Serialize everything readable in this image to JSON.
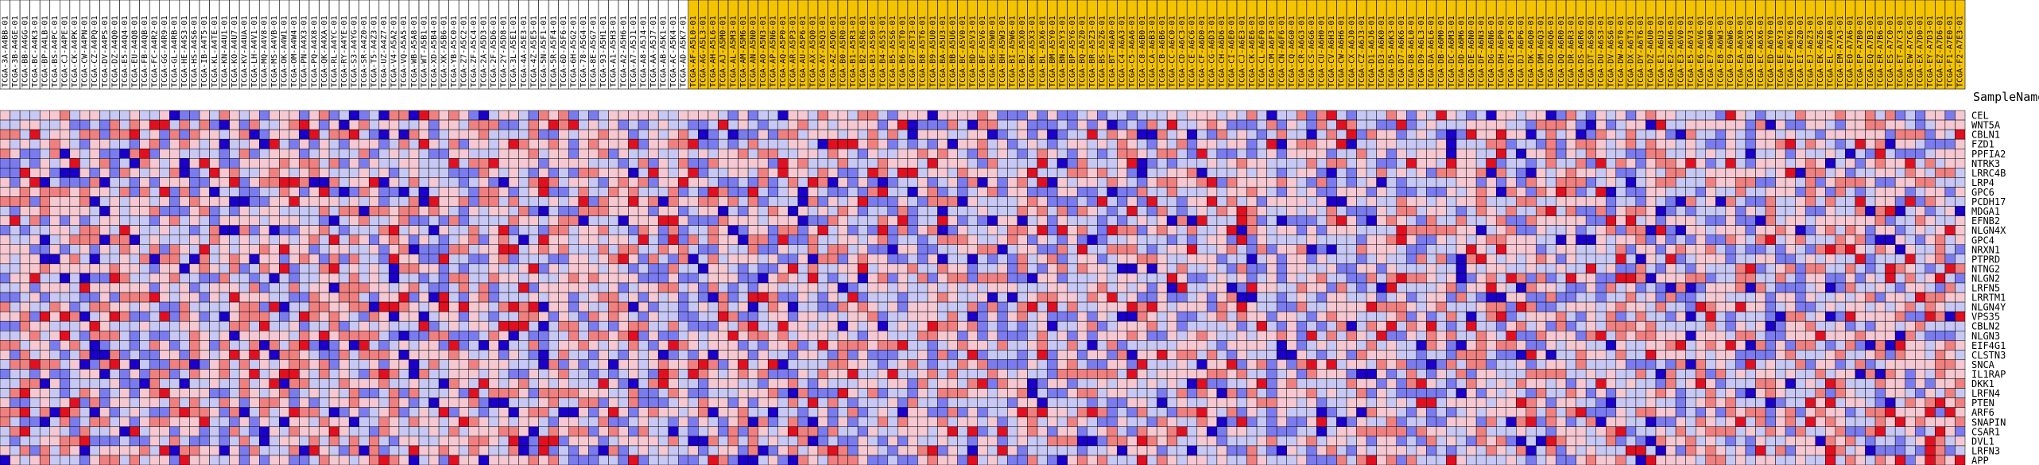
{
  "chart_data": {
    "type": "heatmap",
    "title": "",
    "row_header": "SampleName",
    "group_colors": [
      "#ffffff",
      "#f5c400"
    ],
    "group_split_index": 69,
    "color_scale": [
      "#1a00c8",
      "#7b7bf0",
      "#c8c8f5",
      "#f5c8d2",
      "#f08080",
      "#e01020"
    ],
    "genes": [
      "CEL",
      "WNT5A",
      "CBLN1",
      "FZD1",
      "PPFIA2",
      "NTRK3",
      "LRRC4B",
      "LRP4",
      "GPC6",
      "PCDH17",
      "MDGA1",
      "EFNB2",
      "NLGN4X",
      "GPC4",
      "NRXN1",
      "PTPRD",
      "NTNG2",
      "NLGN2",
      "LRFN5",
      "LRRTM1",
      "NLGN4Y",
      "VPS35",
      "CBLN2",
      "NLGN3",
      "EIF4G1",
      "CLSTN3",
      "SNCA",
      "IL1RAP",
      "DKK1",
      "LRFN4",
      "PTEN",
      "ARF6",
      "SNAPIN",
      "CSAR1",
      "DVL1",
      "LRFN3",
      "APP"
    ],
    "samples": [
      "TCGA-3A-A4BB-01",
      "TCGA-3B-A4GE-01",
      "TCGA-BB-A4GG-01",
      "TCGA-BC-A4K3-01",
      "TCGA-BP-A4LB-01",
      "TCGA-BS-A4PC-01",
      "TCGA-CJ-A4PE-01",
      "TCGA-CK-A4PK-01",
      "TCGA-CW-A4PN-01",
      "TCGA-CZ-A4PQ-01",
      "TCGA-DV-A4PS-01",
      "TCGA-DZ-A4Q0-01",
      "TCGA-E5-A4Q4-01",
      "TCGA-EU-A4Q8-01",
      "TCGA-FB-A4QB-01",
      "TCGA-FC-A4R2-01",
      "TCGA-GG-A4R9-01",
      "TCGA-GL-A4RB-01",
      "TCGA-HE-A4S3-01",
      "TCGA-HS-A4S6-01",
      "TCGA-IB-A4T5-01",
      "TCGA-KL-A4TE-01",
      "TCGA-KN-A4U1-01",
      "TCGA-KO-A4U7-01",
      "TCGA-KV-A4UA-01",
      "TCGA-LH-A4V1-01",
      "TCGA-MQ-A4V8-01",
      "TCGA-MS-A4VB-01",
      "TCGA-OK-A4W1-01",
      "TCGA-OM-A4W4-01",
      "TCGA-PN-A4X3-01",
      "TCGA-PQ-A4X8-01",
      "TCGA-QK-A4XA-01",
      "TCGA-RL-A4YC-01",
      "TCGA-RY-A4YE-01",
      "TCGA-S3-A4YG-01",
      "TCGA-SR-A4Z0-01",
      "TCGA-T5-A4Z3-01",
      "TCGA-UZ-A4Z7-01",
      "TCGA-V4-A5A2-01",
      "TCGA-VQ-A5A5-01",
      "TCGA-WB-A5A8-01",
      "TCGA-WT-A5B1-01",
      "TCGA-XD-A5B4-01",
      "TCGA-XK-A5B6-01",
      "TCGA-YB-A5C0-01",
      "TCGA-Z7-A5C2-01",
      "TCGA-ZF-A5C4-01",
      "TCGA-2A-A5D3-01",
      "TCGA-2F-A5D6-01",
      "TCGA-2Y-A5D8-01",
      "TCGA-3L-A5E1-01",
      "TCGA-4A-A5E3-01",
      "TCGA-4Z-A5E5-01",
      "TCGA-5N-A5F1-01",
      "TCGA-5R-A5F4-01",
      "TCGA-6D-A5F6-01",
      "TCGA-6H-A5G2-01",
      "TCGA-78-A5G4-01",
      "TCGA-8E-A5G7-01",
      "TCGA-93-A5H1-01",
      "TCGA-A1-A5H3-01",
      "TCGA-A2-A5H6-01",
      "TCGA-A7-A5J1-01",
      "TCGA-A8-A5J4-01",
      "TCGA-AA-A5J7-01",
      "TCGA-AB-A5K1-01",
      "TCGA-AC-A5K4-01",
      "TCGA-AD-A5K7-01",
      "TCGA-AF-A5L0-01",
      "TCGA-AG-A5L3-01",
      "TCGA-AH-A5L6-01",
      "TCGA-AJ-A5M0-01",
      "TCGA-AL-A5M3-01",
      "TCGA-AM-A5M6-01",
      "TCGA-AN-A5N0-01",
      "TCGA-AO-A5N3-01",
      "TCGA-AP-A5N6-01",
      "TCGA-AQ-A5P0-01",
      "TCGA-AR-A5P3-01",
      "TCGA-AU-A5P6-01",
      "TCGA-AX-A5Q0-01",
      "TCGA-AY-A5Q3-01",
      "TCGA-AZ-A5Q6-01",
      "TCGA-B0-A5R0-01",
      "TCGA-B1-A5R3-01",
      "TCGA-B2-A5R6-01",
      "TCGA-B3-A5S0-01",
      "TCGA-B4-A5S3-01",
      "TCGA-B5-A5S6-01",
      "TCGA-B6-A5T0-01",
      "TCGA-B7-A5T3-01",
      "TCGA-B8-A5T6-01",
      "TCGA-B9-A5U0-01",
      "TCGA-BA-A5U3-01",
      "TCGA-BB-A5U6-01",
      "TCGA-BC-A5V0-01",
      "TCGA-BD-A5V3-01",
      "TCGA-BF-A5V6-01",
      "TCGA-BG-A5W0-01",
      "TCGA-BH-A5W3-01",
      "TCGA-BI-A5W6-01",
      "TCGA-BJ-A5X0-01",
      "TCGA-BK-A5X3-01",
      "TCGA-BL-A5X6-01",
      "TCGA-BM-A5Y0-01",
      "TCGA-BN-A5Y3-01",
      "TCGA-BP-A5Y6-01",
      "TCGA-BQ-A5Z0-01",
      "TCGA-BR-A5Z3-01",
      "TCGA-BS-A5Z6-01",
      "TCGA-BT-A6A0-01",
      "TCGA-C4-A6A3-01",
      "TCGA-C5-A6A6-01",
      "TCGA-C8-A6B0-01",
      "TCGA-CA-A6B3-01",
      "TCGA-CB-A6B6-01",
      "TCGA-CC-A6C0-01",
      "TCGA-CD-A6C3-01",
      "TCGA-CE-A6C6-01",
      "TCGA-CF-A6D0-01",
      "TCGA-CG-A6D3-01",
      "TCGA-CH-A6D6-01",
      "TCGA-CI-A6E0-01",
      "TCGA-CJ-A6E3-01",
      "TCGA-CK-A6E6-01",
      "TCGA-CL-A6F0-01",
      "TCGA-CM-A6F3-01",
      "TCGA-CN-A6F6-01",
      "TCGA-CQ-A6G0-01",
      "TCGA-CR-A6G3-01",
      "TCGA-CS-A6G6-01",
      "TCGA-CU-A6H0-01",
      "TCGA-CV-A6H3-01",
      "TCGA-CW-A6H6-01",
      "TCGA-CX-A6J0-01",
      "TCGA-CZ-A6J3-01",
      "TCGA-D1-A6J6-01",
      "TCGA-D3-A6K0-01",
      "TCGA-D5-A6K3-01",
      "TCGA-D7-A6K6-01",
      "TCGA-D8-A6L0-01",
      "TCGA-D9-A6L3-01",
      "TCGA-DA-A6L6-01",
      "TCGA-DB-A6M0-01",
      "TCGA-DC-A6M3-01",
      "TCGA-DD-A6M6-01",
      "TCGA-DE-A6N0-01",
      "TCGA-DF-A6N3-01",
      "TCGA-DG-A6N6-01",
      "TCGA-DH-A6P0-01",
      "TCGA-DI-A6P3-01",
      "TCGA-DJ-A6P6-01",
      "TCGA-DK-A6Q0-01",
      "TCGA-DM-A6Q3-01",
      "TCGA-DO-A6Q6-01",
      "TCGA-DQ-A6R0-01",
      "TCGA-DR-A6R3-01",
      "TCGA-DS-A6R6-01",
      "TCGA-DT-A6S0-01",
      "TCGA-DU-A6S3-01",
      "TCGA-DV-A6S6-01",
      "TCGA-DW-A6T0-01",
      "TCGA-DX-A6T3-01",
      "TCGA-DY-A6T6-01",
      "TCGA-DZ-A6U0-01",
      "TCGA-E1-A6U3-01",
      "TCGA-E2-A6U6-01",
      "TCGA-E3-A6V0-01",
      "TCGA-E5-A6V3-01",
      "TCGA-E6-A6V6-01",
      "TCGA-E7-A6W0-01",
      "TCGA-E8-A6W3-01",
      "TCGA-E9-A6W6-01",
      "TCGA-EA-A6X0-01",
      "TCGA-EB-A6X3-01",
      "TCGA-EC-A6X6-01",
      "TCGA-ED-A6Y0-01",
      "TCGA-EE-A6Y3-01",
      "TCGA-EF-A6Y6-01",
      "TCGA-EI-A6Z0-01",
      "TCGA-EJ-A6Z3-01",
      "TCGA-EK-A6Z6-01",
      "TCGA-EL-A7A0-01",
      "TCGA-EM-A7A3-01",
      "TCGA-EO-A7A6-01",
      "TCGA-EP-A7B0-01",
      "TCGA-EQ-A7B3-01",
      "TCGA-ER-A7B6-01",
      "TCGA-ES-A7C0-01",
      "TCGA-ET-A7C3-01",
      "TCGA-EW-A7C6-01",
      "TCGA-EX-A7D0-01",
      "TCGA-EY-A7D3-01",
      "TCGA-EZ-A7D6-01",
      "TCGA-F1-A7E0-01",
      "TCGA-F2-A7E3-01"
    ],
    "values_seed": 20240917,
    "value_range": [
      -2,
      2
    ]
  }
}
